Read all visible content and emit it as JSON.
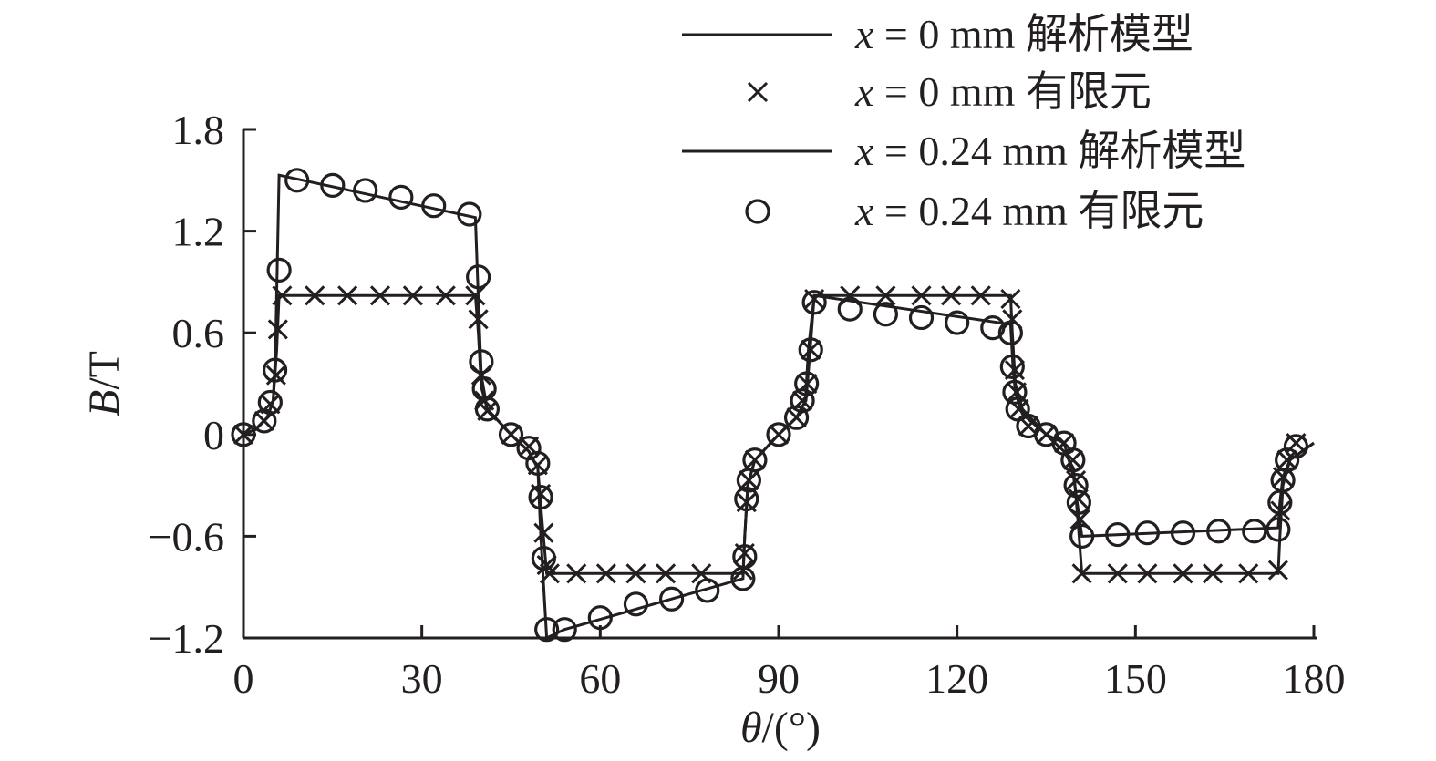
{
  "chart_data": {
    "type": "line",
    "xlabel": "θ/(°)",
    "ylabel": "B/T",
    "xlim": [
      0,
      180
    ],
    "ylim": [
      -1.2,
      1.8
    ],
    "xticks": [
      0,
      30,
      60,
      90,
      120,
      150,
      180
    ],
    "yticks": [
      -1.2,
      -0.6,
      0,
      0.6,
      1.2,
      1.8
    ],
    "ytick_labels": [
      "−1.2",
      "−0.6",
      "0",
      "0.6",
      "1.2",
      "1.8"
    ],
    "grid": false,
    "legend_position": "top-right",
    "colors": {
      "ink": "#231f20"
    },
    "series": [
      {
        "name": "x = 0 mm 解析模型",
        "legend_var": "x",
        "legend_rest": " = 0 mm 解析模型",
        "style": "line",
        "points": [
          [
            0,
            0
          ],
          [
            2,
            0.03
          ],
          [
            4,
            0.1
          ],
          [
            5,
            0.2
          ],
          [
            5.6,
            0.5
          ],
          [
            6,
            0.82
          ],
          [
            39,
            0.82
          ],
          [
            39.5,
            0.6
          ],
          [
            40,
            0.28
          ],
          [
            41,
            0.15
          ],
          [
            45,
            0
          ],
          [
            48,
            -0.1
          ],
          [
            49.5,
            -0.2
          ],
          [
            50.2,
            -0.5
          ],
          [
            51,
            -0.82
          ],
          [
            84,
            -0.82
          ],
          [
            84.3,
            -0.6
          ],
          [
            84.8,
            -0.3
          ],
          [
            86,
            -0.15
          ],
          [
            90,
            0
          ],
          [
            93,
            0.1
          ],
          [
            94.6,
            0.2
          ],
          [
            95.3,
            0.5
          ],
          [
            96,
            0.82
          ],
          [
            129,
            0.82
          ],
          [
            129.3,
            0.6
          ],
          [
            129.8,
            0.3
          ],
          [
            131,
            0.15
          ],
          [
            135,
            0
          ],
          [
            138,
            -0.1
          ],
          [
            139.6,
            -0.2
          ],
          [
            140.3,
            -0.5
          ],
          [
            141,
            -0.82
          ],
          [
            174,
            -0.82
          ],
          [
            174.3,
            -0.6
          ],
          [
            174.8,
            -0.3
          ],
          [
            176,
            -0.15
          ],
          [
            180,
            -0.05
          ]
        ]
      },
      {
        "name": "x = 0 mm 有限元",
        "legend_var": "x",
        "legend_rest": " = 0 mm 有限元",
        "style": "cross",
        "points": [
          [
            0,
            0
          ],
          [
            3.5,
            0.08
          ],
          [
            4.5,
            0.18
          ],
          [
            5.5,
            0.35
          ],
          [
            5.8,
            0.62
          ],
          [
            6.5,
            0.82
          ],
          [
            12,
            0.82
          ],
          [
            17.5,
            0.82
          ],
          [
            23,
            0.82
          ],
          [
            28.5,
            0.82
          ],
          [
            34,
            0.82
          ],
          [
            39,
            0.82
          ],
          [
            39.5,
            0.68
          ],
          [
            40,
            0.35
          ],
          [
            40.5,
            0.2
          ],
          [
            41,
            0.14
          ],
          [
            45,
            0
          ],
          [
            48,
            -0.07
          ],
          [
            49.5,
            -0.18
          ],
          [
            50,
            -0.35
          ],
          [
            50.5,
            -0.58
          ],
          [
            51,
            -0.77
          ],
          [
            51.5,
            -0.82
          ],
          [
            56,
            -0.82
          ],
          [
            61,
            -0.82
          ],
          [
            66,
            -0.82
          ],
          [
            71,
            -0.82
          ],
          [
            77,
            -0.82
          ],
          [
            84,
            -0.8
          ],
          [
            84.3,
            -0.7
          ],
          [
            84.6,
            -0.4
          ],
          [
            85,
            -0.27
          ],
          [
            86,
            -0.15
          ],
          [
            90,
            0
          ],
          [
            93,
            0.1
          ],
          [
            94,
            0.2
          ],
          [
            94.8,
            0.3
          ],
          [
            95.4,
            0.5
          ],
          [
            96,
            0.8
          ],
          [
            102,
            0.82
          ],
          [
            108,
            0.82
          ],
          [
            114,
            0.82
          ],
          [
            119,
            0.82
          ],
          [
            124,
            0.82
          ],
          [
            129,
            0.8
          ],
          [
            129.3,
            0.68
          ],
          [
            129.7,
            0.38
          ],
          [
            130,
            0.25
          ],
          [
            130.4,
            0.15
          ],
          [
            132,
            0.05
          ],
          [
            135,
            0
          ],
          [
            138,
            -0.05
          ],
          [
            139.5,
            -0.15
          ],
          [
            140,
            -0.27
          ],
          [
            140.4,
            -0.38
          ],
          [
            140.7,
            -0.5
          ],
          [
            141,
            -0.82
          ],
          [
            147,
            -0.82
          ],
          [
            152,
            -0.82
          ],
          [
            158,
            -0.82
          ],
          [
            163,
            -0.82
          ],
          [
            169,
            -0.82
          ],
          [
            174,
            -0.8
          ],
          [
            174.4,
            -0.45
          ],
          [
            174.8,
            -0.25
          ],
          [
            175.5,
            -0.15
          ],
          [
            177,
            -0.05
          ]
        ]
      },
      {
        "name": "x = 0.24 mm 解析模型",
        "legend_var": "x",
        "legend_rest": " = 0.24 mm 解析模型",
        "style": "line",
        "points": [
          [
            0,
            0
          ],
          [
            2,
            0.03
          ],
          [
            4,
            0.1
          ],
          [
            5,
            0.2
          ],
          [
            5.4,
            0.5
          ],
          [
            6,
            1.53
          ],
          [
            39,
            1.28
          ],
          [
            39.5,
            0.8
          ],
          [
            40,
            0.35
          ],
          [
            41,
            0.15
          ],
          [
            45,
            0
          ],
          [
            48,
            -0.1
          ],
          [
            49.5,
            -0.2
          ],
          [
            50,
            -0.6
          ],
          [
            51,
            -1.2
          ],
          [
            54,
            -1.15
          ],
          [
            84,
            -0.85
          ],
          [
            84.3,
            -0.6
          ],
          [
            84.8,
            -0.3
          ],
          [
            86,
            -0.15
          ],
          [
            90,
            0
          ],
          [
            93,
            0.1
          ],
          [
            94.5,
            0.2
          ],
          [
            95,
            0.5
          ],
          [
            96,
            0.82
          ],
          [
            129,
            0.65
          ],
          [
            129.4,
            0.4
          ],
          [
            129.8,
            0.25
          ],
          [
            131,
            0.12
          ],
          [
            135,
            0
          ],
          [
            138,
            -0.05
          ],
          [
            139.6,
            -0.25
          ],
          [
            140.2,
            -0.4
          ],
          [
            141,
            -0.6
          ],
          [
            174,
            -0.55
          ],
          [
            174.3,
            -0.4
          ],
          [
            174.8,
            -0.25
          ],
          [
            176,
            -0.15
          ],
          [
            180,
            -0.05
          ]
        ]
      },
      {
        "name": "x = 0.24 mm 有限元",
        "legend_var": "x",
        "legend_rest": " = 0.24 mm 有限元",
        "style": "circle",
        "points": [
          [
            0,
            0
          ],
          [
            3.5,
            0.08
          ],
          [
            4.5,
            0.19
          ],
          [
            5.3,
            0.38
          ],
          [
            6,
            0.97
          ],
          [
            9,
            1.5
          ],
          [
            15,
            1.47
          ],
          [
            20.5,
            1.44
          ],
          [
            26.5,
            1.4
          ],
          [
            32,
            1.35
          ],
          [
            38,
            1.3
          ],
          [
            39.5,
            0.93
          ],
          [
            40,
            0.43
          ],
          [
            40.5,
            0.27
          ],
          [
            41,
            0.15
          ],
          [
            45,
            0
          ],
          [
            48,
            -0.08
          ],
          [
            49.5,
            -0.17
          ],
          [
            50,
            -0.37
          ],
          [
            50.5,
            -0.73
          ],
          [
            51,
            -1.15
          ],
          [
            54,
            -1.15
          ],
          [
            60,
            -1.08
          ],
          [
            66,
            -1.0
          ],
          [
            72,
            -0.97
          ],
          [
            78,
            -0.92
          ],
          [
            84,
            -0.85
          ],
          [
            84.3,
            -0.72
          ],
          [
            84.6,
            -0.38
          ],
          [
            85,
            -0.27
          ],
          [
            86,
            -0.15
          ],
          [
            90,
            0
          ],
          [
            93,
            0.1
          ],
          [
            94,
            0.2
          ],
          [
            94.7,
            0.3
          ],
          [
            95.4,
            0.5
          ],
          [
            96,
            0.78
          ],
          [
            102,
            0.74
          ],
          [
            108,
            0.71
          ],
          [
            114,
            0.69
          ],
          [
            120,
            0.66
          ],
          [
            126,
            0.63
          ],
          [
            129,
            0.6
          ],
          [
            129.3,
            0.4
          ],
          [
            129.7,
            0.25
          ],
          [
            130.2,
            0.15
          ],
          [
            132,
            0.05
          ],
          [
            135,
            0
          ],
          [
            138,
            -0.05
          ],
          [
            139.5,
            -0.15
          ],
          [
            140,
            -0.3
          ],
          [
            140.5,
            -0.4
          ],
          [
            141,
            -0.6
          ],
          [
            147,
            -0.59
          ],
          [
            152,
            -0.58
          ],
          [
            158,
            -0.58
          ],
          [
            164,
            -0.57
          ],
          [
            170,
            -0.57
          ],
          [
            174,
            -0.56
          ],
          [
            174.3,
            -0.4
          ],
          [
            174.8,
            -0.27
          ],
          [
            175.5,
            -0.15
          ],
          [
            177,
            -0.07
          ]
        ]
      }
    ]
  }
}
